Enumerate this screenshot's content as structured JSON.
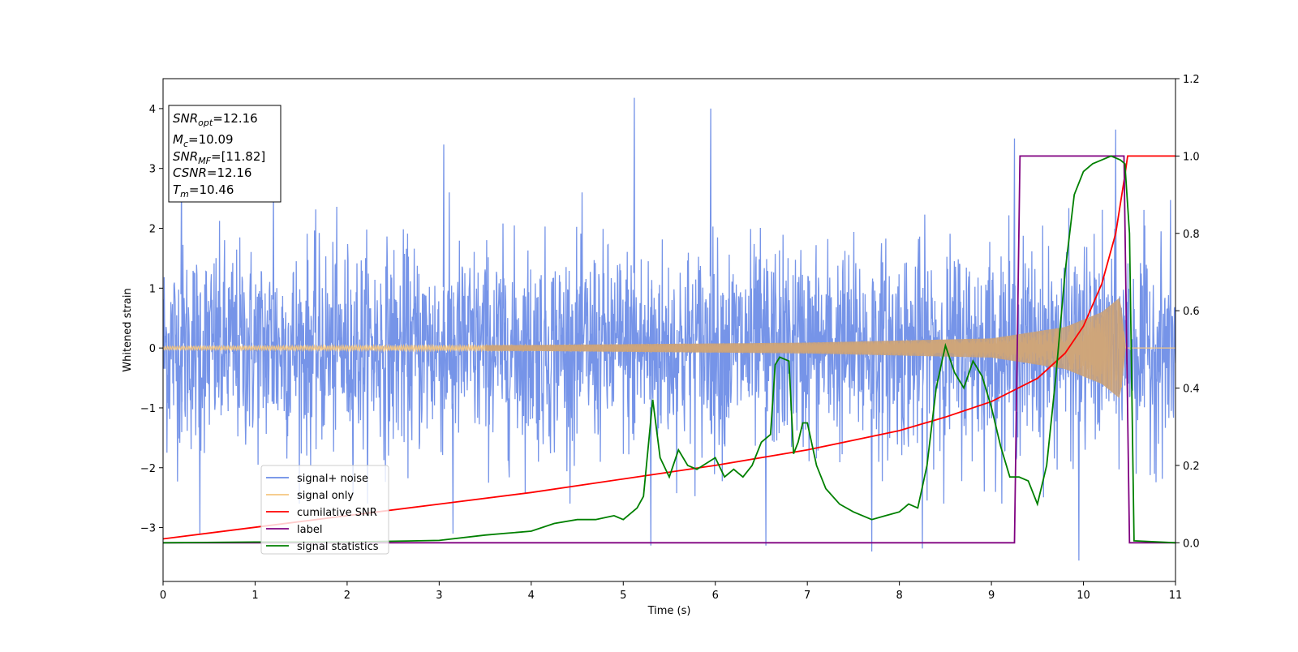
{
  "chart_data": {
    "type": "line",
    "xlabel": "Time (s)",
    "ylabel": "Whitened strain",
    "xlim": [
      0,
      11
    ],
    "ylim": [
      -3.9,
      4.5
    ],
    "y2lim": [
      -0.1,
      1.2
    ],
    "x_ticks": [
      0,
      1,
      2,
      3,
      4,
      5,
      6,
      7,
      8,
      9,
      10,
      11
    ],
    "y_ticks": [
      -3,
      -2,
      -1,
      0,
      1,
      2,
      3,
      4
    ],
    "y_tick_labels": [
      "−3",
      "−2",
      "−1",
      "0",
      "1",
      "2",
      "3",
      "4"
    ],
    "y2_ticks": [
      0.0,
      0.2,
      0.4,
      0.6,
      0.8,
      1.0,
      1.2
    ],
    "y2_tick_labels": [
      "0.0",
      "0.2",
      "0.4",
      "0.6",
      "0.8",
      "1.0",
      "1.2"
    ],
    "grid": false,
    "legend_position": "lower-left",
    "annotation": [
      {
        "main": "SNR",
        "sub": "opt",
        "value": "=12.16"
      },
      {
        "main": "M",
        "sub": "c",
        "value": "=10.09"
      },
      {
        "main": "SNR",
        "sub": "MF",
        "value": "=[11.82]"
      },
      {
        "main": "CSNR",
        "sub": "",
        "value": "=12.16"
      },
      {
        "main": "T",
        "sub": "m",
        "value": "=10.46"
      }
    ],
    "series": [
      {
        "name": "signal+ noise",
        "axis": "left",
        "color": "#6a8be6",
        "style": "dense noise band",
        "band_core": [
          -1.3,
          1.3
        ],
        "peaks": [
          [
            0.2,
            3.0
          ],
          [
            0.4,
            -3.1
          ],
          [
            1.2,
            2.7
          ],
          [
            3.05,
            3.4
          ],
          [
            3.15,
            -3.1
          ],
          [
            5.12,
            4.18
          ],
          [
            5.3,
            -3.3
          ],
          [
            5.95,
            4.0
          ],
          [
            6.55,
            -3.3
          ],
          [
            7.7,
            -3.4
          ],
          [
            8.25,
            -3.35
          ],
          [
            9.25,
            3.5
          ],
          [
            9.95,
            -3.55
          ],
          [
            10.35,
            3.65
          ]
        ]
      },
      {
        "name": "signal only",
        "axis": "left",
        "color": "#f5c67f",
        "style": "chirp",
        "t_merge": 10.46,
        "amplitude": [
          [
            0,
            0.03
          ],
          [
            4,
            0.05
          ],
          [
            7,
            0.09
          ],
          [
            9,
            0.16
          ],
          [
            9.8,
            0.35
          ],
          [
            10.2,
            0.6
          ],
          [
            10.4,
            0.85
          ],
          [
            10.46,
            0.0
          ]
        ]
      },
      {
        "name": "cumilative SNR",
        "axis": "right",
        "color": "#ff0000",
        "points": [
          [
            0,
            0.01
          ],
          [
            1,
            0.04
          ],
          [
            2,
            0.07
          ],
          [
            3,
            0.1
          ],
          [
            4,
            0.13
          ],
          [
            5,
            0.165
          ],
          [
            6,
            0.2
          ],
          [
            7,
            0.24
          ],
          [
            8,
            0.29
          ],
          [
            8.5,
            0.325
          ],
          [
            9,
            0.365
          ],
          [
            9.5,
            0.425
          ],
          [
            9.8,
            0.49
          ],
          [
            10.0,
            0.56
          ],
          [
            10.2,
            0.67
          ],
          [
            10.35,
            0.8
          ],
          [
            10.45,
            0.95
          ],
          [
            10.48,
            1.0
          ],
          [
            11,
            1.0
          ]
        ]
      },
      {
        "name": "label",
        "axis": "right",
        "color": "#800080",
        "points": [
          [
            0,
            0.0
          ],
          [
            9.25,
            0.0
          ],
          [
            9.31,
            1.0
          ],
          [
            10.44,
            1.0
          ],
          [
            10.5,
            0.0
          ],
          [
            11,
            0.0
          ]
        ]
      },
      {
        "name": "signal statistics",
        "axis": "right",
        "color": "#008000",
        "points": [
          [
            0,
            0.0
          ],
          [
            1,
            0.002
          ],
          [
            2,
            0.002
          ],
          [
            2.5,
            0.004
          ],
          [
            3.0,
            0.006
          ],
          [
            3.5,
            0.02
          ],
          [
            3.75,
            0.025
          ],
          [
            4.0,
            0.03
          ],
          [
            4.25,
            0.05
          ],
          [
            4.5,
            0.06
          ],
          [
            4.7,
            0.06
          ],
          [
            4.9,
            0.07
          ],
          [
            5.0,
            0.06
          ],
          [
            5.15,
            0.09
          ],
          [
            5.22,
            0.12
          ],
          [
            5.32,
            0.37
          ],
          [
            5.4,
            0.22
          ],
          [
            5.5,
            0.17
          ],
          [
            5.6,
            0.24
          ],
          [
            5.7,
            0.2
          ],
          [
            5.8,
            0.19
          ],
          [
            6.0,
            0.22
          ],
          [
            6.1,
            0.17
          ],
          [
            6.2,
            0.19
          ],
          [
            6.3,
            0.17
          ],
          [
            6.4,
            0.2
          ],
          [
            6.5,
            0.26
          ],
          [
            6.6,
            0.28
          ],
          [
            6.65,
            0.46
          ],
          [
            6.7,
            0.48
          ],
          [
            6.8,
            0.47
          ],
          [
            6.85,
            0.23
          ],
          [
            6.9,
            0.26
          ],
          [
            6.95,
            0.31
          ],
          [
            7.0,
            0.31
          ],
          [
            7.1,
            0.2
          ],
          [
            7.2,
            0.14
          ],
          [
            7.35,
            0.1
          ],
          [
            7.5,
            0.08
          ],
          [
            7.7,
            0.06
          ],
          [
            7.85,
            0.07
          ],
          [
            8.0,
            0.08
          ],
          [
            8.1,
            0.1
          ],
          [
            8.2,
            0.09
          ],
          [
            8.3,
            0.2
          ],
          [
            8.4,
            0.4
          ],
          [
            8.5,
            0.51
          ],
          [
            8.6,
            0.44
          ],
          [
            8.7,
            0.4
          ],
          [
            8.8,
            0.47
          ],
          [
            8.9,
            0.43
          ],
          [
            9.0,
            0.35
          ],
          [
            9.1,
            0.25
          ],
          [
            9.2,
            0.17
          ],
          [
            9.3,
            0.17
          ],
          [
            9.4,
            0.16
          ],
          [
            9.5,
            0.1
          ],
          [
            9.6,
            0.2
          ],
          [
            9.7,
            0.43
          ],
          [
            9.8,
            0.7
          ],
          [
            9.9,
            0.9
          ],
          [
            10.0,
            0.96
          ],
          [
            10.1,
            0.98
          ],
          [
            10.2,
            0.99
          ],
          [
            10.3,
            1.0
          ],
          [
            10.4,
            0.99
          ],
          [
            10.45,
            0.98
          ],
          [
            10.5,
            0.8
          ],
          [
            10.55,
            0.005
          ],
          [
            11,
            0.0
          ]
        ]
      }
    ]
  }
}
